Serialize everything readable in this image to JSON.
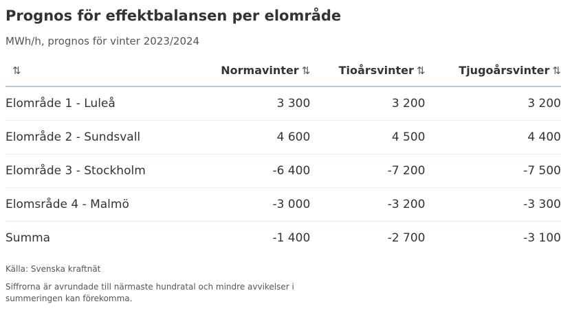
{
  "title": "Prognos för effektbalansen per elområde",
  "subtitle": "MWh/h, prognos för vinter 2023/2024",
  "icons": {
    "sort": "⇅"
  },
  "chart_data": {
    "type": "table",
    "columns": [
      "",
      "Normavinter",
      "Tioårsvinter",
      "Tjugoårsvinter"
    ],
    "rows": [
      {
        "label": "Elområde 1 - Luleå",
        "values": [
          "3 300",
          "3 200",
          "3 200"
        ]
      },
      {
        "label": "Elområde 2 - Sundsvall",
        "values": [
          "4 600",
          "4 500",
          "4 400"
        ]
      },
      {
        "label": "Elområde 3 - Stockholm",
        "values": [
          "-6 400",
          "-7 200",
          "-7 500"
        ]
      },
      {
        "label": "Elomsråde 4 - Malmö",
        "values": [
          "-3 000",
          "-3 200",
          "-3 300"
        ]
      },
      {
        "label": "Summa",
        "values": [
          "-1 400",
          "-2 700",
          "-3 100"
        ]
      }
    ]
  },
  "source": "Källa: Svenska kraftnät",
  "footnote": "Siffrorna är avrundade till närmaste hundratal och mindre avvikelser i summeringen kan förekomma."
}
